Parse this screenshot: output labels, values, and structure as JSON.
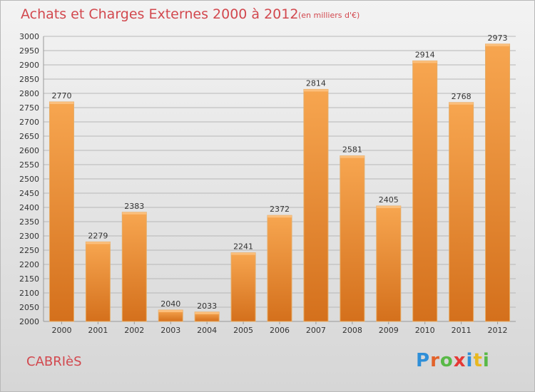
{
  "header": {
    "title": "Achats et Charges Externes 2000 à 2012",
    "subtitle": "(en milliers d'€)"
  },
  "place": "CABRIèS",
  "logo": {
    "text": "Proxiti",
    "letters": [
      {
        "ch": "P",
        "color": "#2f8fd8"
      },
      {
        "ch": "r",
        "color": "#e2622a"
      },
      {
        "ch": "o",
        "color": "#59b947"
      },
      {
        "ch": "x",
        "color": "#e53935"
      },
      {
        "ch": "i",
        "color": "#2f8fd8"
      },
      {
        "ch": "t",
        "color": "#e8b820"
      },
      {
        "ch": "i",
        "color": "#59b947"
      }
    ]
  },
  "colors": {
    "bar_top": "#f7a650",
    "bar_bottom": "#d4701c",
    "bar_side": "#e6ac66",
    "grid": "#b7b7b7",
    "text": "#333333"
  },
  "chart_data": {
    "type": "bar",
    "categories": [
      "2000",
      "2001",
      "2002",
      "2003",
      "2004",
      "2005",
      "2006",
      "2007",
      "2008",
      "2009",
      "2010",
      "2011",
      "2012"
    ],
    "values": [
      2770,
      2279,
      2383,
      2040,
      2033,
      2241,
      2372,
      2814,
      2581,
      2405,
      2914,
      2768,
      2973
    ],
    "data_labels": [
      "2770",
      "2279",
      "2383",
      "2040",
      "2033",
      "2241",
      "2372",
      "2814",
      "2581",
      "2405",
      "2914",
      "2768",
      "2973"
    ],
    "ylim": [
      2000,
      3000
    ],
    "ytick_step": 50,
    "yticks": [
      "2000",
      "2050",
      "2100",
      "2150",
      "2200",
      "2250",
      "2300",
      "2350",
      "2400",
      "2450",
      "2500",
      "2550",
      "2600",
      "2650",
      "2700",
      "2750",
      "2800",
      "2850",
      "2900",
      "2950",
      "3000"
    ],
    "grid": true,
    "title": "Achats et Charges Externes 2000 à 2012",
    "xlabel": "",
    "ylabel": ""
  }
}
